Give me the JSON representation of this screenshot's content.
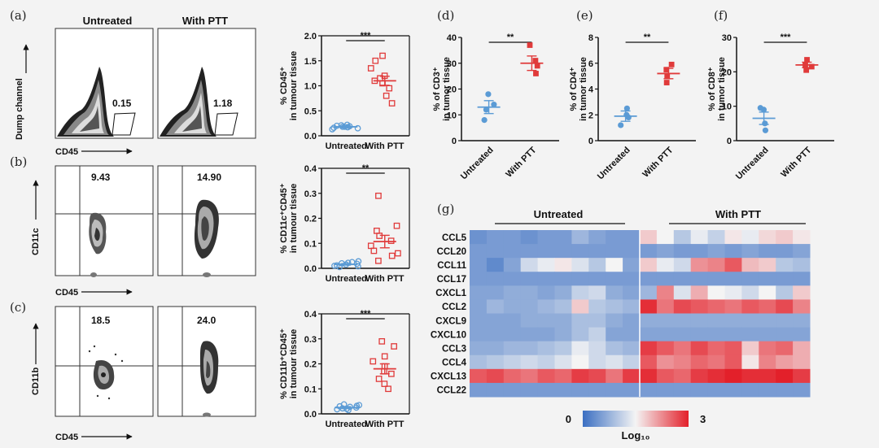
{
  "panels": {
    "a": "(a)",
    "b": "(b)",
    "c": "(c)",
    "d": "(d)",
    "e": "(e)",
    "f": "(f)",
    "g": "(g)"
  },
  "flow": {
    "header_untreated": "Untreated",
    "header_ptt": "With PTT",
    "rows": [
      {
        "x_label": "CD45",
        "y_label": "Dump channel",
        "untreated_value": "0.15",
        "ptt_value": "1.18"
      },
      {
        "x_label": "CD45",
        "y_label": "CD11c",
        "untreated_value": "9.43",
        "ptt_value": "14.90"
      },
      {
        "x_label": "CD45",
        "y_label": "CD11b",
        "untreated_value": "18.5",
        "ptt_value": "24.0"
      }
    ]
  },
  "chart_data": [
    {
      "id": "a",
      "type": "scatter",
      "ylabel": "% CD45⁺ in tumour tissue",
      "ylabel_line1": "% CD45⁺",
      "ylabel_line2": "in tumour tissue",
      "categories": [
        "Untreated",
        "With PTT"
      ],
      "ylim": [
        0,
        2.0
      ],
      "yticks": [
        "0.0",
        "0.5",
        "1.0",
        "1.5",
        "2.0"
      ],
      "significance": "***",
      "marker": "open-square",
      "series": [
        {
          "name": "Untreated",
          "color": "#5b9bd5",
          "values": [
            0.13,
            0.15,
            0.16,
            0.17,
            0.18,
            0.18,
            0.19,
            0.2,
            0.21,
            0.22
          ],
          "mean": 0.18,
          "sem": 0.02
        },
        {
          "name": "With PTT",
          "color": "#e03a3a",
          "values": [
            0.65,
            0.8,
            0.95,
            1.05,
            1.1,
            1.15,
            1.2,
            1.35,
            1.5,
            1.6
          ],
          "mean": 1.1,
          "sem": 0.09
        }
      ]
    },
    {
      "id": "b",
      "type": "scatter",
      "ylabel": "% CD11c⁺CD45⁺ in tumour tissue",
      "ylabel_line1": "% CD11c⁺CD45⁺",
      "ylabel_line2": "in tumour tissue",
      "categories": [
        "Untreated",
        "With PTT"
      ],
      "ylim": [
        0,
        0.4
      ],
      "yticks": [
        "0.0",
        "0.1",
        "0.2",
        "0.3",
        "0.4"
      ],
      "significance": "**",
      "marker": "open-square",
      "series": [
        {
          "name": "Untreated",
          "color": "#5b9bd5",
          "values": [
            0.005,
            0.008,
            0.01,
            0.012,
            0.015,
            0.018,
            0.02,
            0.022,
            0.025,
            0.028
          ],
          "mean": 0.016,
          "sem": 0.003
        },
        {
          "name": "With PTT",
          "color": "#e03a3a",
          "values": [
            0.03,
            0.05,
            0.06,
            0.07,
            0.09,
            0.11,
            0.13,
            0.15,
            0.17,
            0.29
          ],
          "mean": 0.107,
          "sem": 0.025
        }
      ]
    },
    {
      "id": "c",
      "type": "scatter",
      "ylabel": "% CD11b⁺CD45⁺ in tumour tissue",
      "ylabel_line1": "% CD11b⁺CD45⁺",
      "ylabel_line2": "in tumour tissue",
      "categories": [
        "Untreated",
        "With PTT"
      ],
      "ylim": [
        0,
        0.4
      ],
      "yticks": [
        "0.0",
        "0.1",
        "0.2",
        "0.3",
        "0.4"
      ],
      "significance": "***",
      "marker": "open-square",
      "series": [
        {
          "name": "Untreated",
          "color": "#5b9bd5",
          "values": [
            0.015,
            0.018,
            0.02,
            0.022,
            0.025,
            0.028,
            0.03,
            0.032,
            0.035,
            0.038
          ],
          "mean": 0.025,
          "sem": 0.004
        },
        {
          "name": "With PTT",
          "color": "#e03a3a",
          "values": [
            0.1,
            0.12,
            0.14,
            0.16,
            0.17,
            0.19,
            0.21,
            0.23,
            0.27,
            0.29
          ],
          "mean": 0.18,
          "sem": 0.02
        }
      ]
    },
    {
      "id": "d",
      "type": "scatter",
      "ylabel": "% of CD3⁺ in tumor tissue",
      "ylabel_line1": "% of CD3⁺",
      "ylabel_line2": "in tumor tissue",
      "categories": [
        "Untreated",
        "With PTT"
      ],
      "ylim": [
        0,
        40
      ],
      "yticks": [
        "0",
        "10",
        "20",
        "30",
        "40"
      ],
      "significance": "**",
      "marker": "filled",
      "series": [
        {
          "name": "Untreated",
          "color": "#5b9bd5",
          "values": [
            8,
            12,
            14,
            18
          ],
          "mean": 13,
          "sem": 2.5
        },
        {
          "name": "With PTT",
          "color": "#e03a3a",
          "values": [
            26,
            29,
            31,
            37
          ],
          "mean": 30,
          "sem": 2.8
        }
      ]
    },
    {
      "id": "e",
      "type": "scatter",
      "ylabel": "% of CD4⁺ in tumor tissue",
      "ylabel_line1": "% of CD4⁺",
      "ylabel_line2": "in tumor tissue",
      "categories": [
        "Untreated",
        "With PTT"
      ],
      "ylim": [
        0,
        8
      ],
      "yticks": [
        "0",
        "2",
        "4",
        "6",
        "8"
      ],
      "significance": "**",
      "marker": "filled",
      "series": [
        {
          "name": "Untreated",
          "color": "#5b9bd5",
          "values": [
            1.2,
            1.8,
            2.0,
            2.5
          ],
          "mean": 1.9,
          "sem": 0.4
        },
        {
          "name": "With PTT",
          "color": "#e03a3a",
          "values": [
            4.5,
            5.0,
            5.5,
            5.9
          ],
          "mean": 5.2,
          "sem": 0.4
        }
      ]
    },
    {
      "id": "f",
      "type": "scatter",
      "ylabel": "% of CD8⁺ in tumor tissue",
      "ylabel_line1": "% of CD8⁺",
      "ylabel_line2": "in tumor tissue",
      "categories": [
        "Untreated",
        "With PTT"
      ],
      "ylim": [
        0,
        30
      ],
      "yticks": [
        "0",
        "10",
        "20",
        "30"
      ],
      "significance": "***",
      "marker": "filled",
      "series": [
        {
          "name": "Untreated",
          "color": "#5b9bd5",
          "values": [
            3,
            5,
            9,
            9.5
          ],
          "mean": 6.5,
          "sem": 1.8
        },
        {
          "name": "With PTT",
          "color": "#e03a3a",
          "values": [
            20.5,
            21.5,
            22,
            23.5
          ],
          "mean": 22,
          "sem": 0.8
        }
      ]
    },
    {
      "id": "g",
      "type": "heatmap",
      "group_labels": [
        "Untreated",
        "With PTT"
      ],
      "rows": [
        "CCL5",
        "CCL20",
        "CCL11",
        "CCL17",
        "CXCL1",
        "CCL2",
        "CXCL9",
        "CXCL10",
        "CCL3",
        "CCL4",
        "CXCL13",
        "CCL22"
      ],
      "columns_per_group": 10,
      "scale_min": "0",
      "scale_max": "3",
      "scale_label": "Log₁₀",
      "values": [
        [
          0.4,
          0.5,
          0.5,
          0.4,
          0.5,
          0.5,
          0.8,
          0.6,
          0.5,
          0.5,
          1.8,
          1.5,
          1.0,
          1.4,
          1.1,
          1.6,
          1.4,
          1.7,
          1.8,
          1.6
        ],
        [
          0.5,
          0.5,
          0.5,
          0.5,
          0.5,
          0.5,
          0.5,
          0.5,
          0.5,
          0.5,
          0.5,
          0.6,
          0.5,
          0.5,
          0.6,
          0.5,
          0.6,
          0.5,
          0.5,
          0.6
        ],
        [
          0.5,
          0.3,
          0.6,
          1.2,
          1.4,
          1.6,
          1.3,
          1.0,
          1.5,
          0.6,
          1.8,
          1.4,
          1.2,
          2.2,
          2.3,
          2.6,
          1.9,
          1.8,
          1.0,
          0.9
        ],
        [
          0.5,
          0.5,
          0.5,
          0.5,
          0.5,
          0.5,
          0.5,
          0.5,
          0.5,
          0.5,
          0.5,
          0.5,
          0.5,
          0.5,
          0.5,
          0.5,
          0.5,
          0.5,
          0.5,
          0.5
        ],
        [
          0.6,
          0.6,
          0.7,
          0.7,
          0.6,
          0.7,
          1.1,
          1.2,
          0.7,
          0.6,
          0.8,
          2.3,
          1.3,
          2.0,
          1.5,
          1.4,
          1.2,
          1.5,
          1.0,
          1.8
        ],
        [
          0.6,
          0.8,
          0.7,
          0.7,
          0.8,
          0.9,
          1.8,
          1.0,
          0.9,
          0.8,
          2.9,
          2.4,
          2.7,
          2.6,
          2.5,
          2.4,
          2.6,
          2.5,
          2.7,
          2.3
        ],
        [
          0.6,
          0.6,
          0.6,
          0.7,
          0.7,
          0.7,
          0.9,
          0.9,
          0.7,
          0.6,
          0.7,
          0.7,
          0.7,
          0.7,
          0.7,
          0.7,
          0.7,
          0.7,
          0.7,
          0.7
        ],
        [
          0.6,
          0.6,
          0.6,
          0.6,
          0.6,
          0.7,
          0.9,
          1.1,
          0.6,
          0.6,
          0.6,
          0.6,
          0.6,
          0.6,
          0.6,
          0.6,
          0.6,
          0.6,
          0.6,
          0.6
        ],
        [
          0.7,
          0.7,
          0.8,
          0.8,
          0.9,
          1.0,
          1.4,
          1.2,
          0.9,
          0.8,
          2.8,
          2.6,
          2.4,
          2.7,
          2.5,
          2.6,
          1.8,
          2.4,
          2.5,
          2.0
        ],
        [
          0.9,
          1.0,
          1.1,
          1.2,
          1.1,
          1.3,
          1.5,
          1.2,
          1.3,
          1.1,
          2.6,
          2.2,
          2.3,
          2.5,
          2.4,
          2.6,
          1.6,
          2.3,
          2.1,
          2.0
        ],
        [
          2.6,
          2.7,
          2.5,
          2.4,
          2.6,
          2.5,
          2.8,
          2.7,
          2.4,
          2.8,
          2.9,
          2.6,
          2.5,
          2.8,
          2.9,
          3.0,
          2.9,
          2.9,
          3.0,
          2.8
        ],
        [
          0.5,
          0.5,
          0.5,
          0.5,
          0.5,
          0.5,
          0.5,
          0.5,
          0.5,
          0.5,
          0.5,
          0.5,
          0.5,
          0.5,
          0.5,
          0.5,
          0.5,
          0.5,
          0.5,
          0.5
        ]
      ]
    }
  ]
}
